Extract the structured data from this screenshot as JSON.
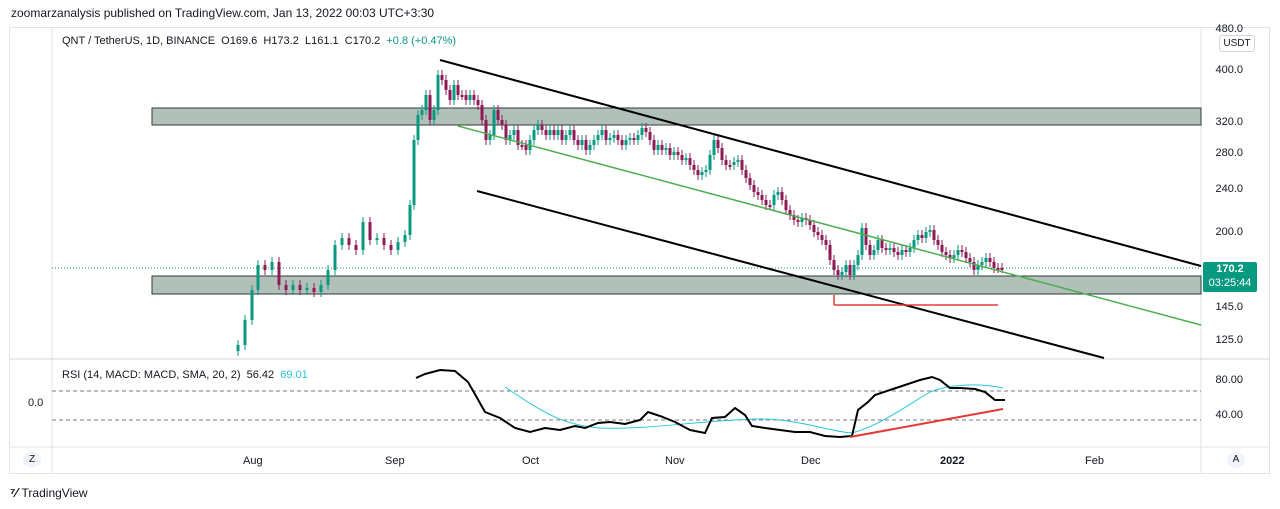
{
  "header": {
    "publisher_line": "zoomarzanalysis published on TradingView.com, Jan 13, 2022 00:03 UTC+3:30"
  },
  "symbol_bar": {
    "pair": "QNT / TetherUS, 1D, BINANCE",
    "o": "O169.6",
    "h": "H173.2",
    "l": "L161.1",
    "c": "C170.2",
    "change": "+0.8 (+0.47%)"
  },
  "price_axis": {
    "currency_button": "USDT",
    "labels": [
      "480.0",
      "400.0",
      "320.0",
      "280.0",
      "240.0",
      "200.0",
      "145.0",
      "125.0"
    ],
    "last_price": "170.2",
    "countdown": "03:25:44"
  },
  "rsi_panel": {
    "title": "RSI (14, MACD: MACD, SMA, 20, 2)",
    "value1": "56.42",
    "value2": "69.01",
    "axis_labels": [
      "80.00",
      "40.00"
    ],
    "left_label": "0.0"
  },
  "time_axis": {
    "labels": [
      "Aug",
      "Sep",
      "Oct",
      "Nov",
      "Dec",
      "2022",
      "Feb"
    ]
  },
  "corner_buttons": {
    "left": "Z",
    "right": "A"
  },
  "footer": {
    "brand": "TradingView"
  },
  "colors": {
    "up": "#089981",
    "down": "#8e1b55",
    "zone_fill": "#b2c0ba",
    "channel": "#000000",
    "trend": "#4caf50",
    "support": "#e53935",
    "rsi": "#000000",
    "rsi_ma": "#26c6da"
  }
}
